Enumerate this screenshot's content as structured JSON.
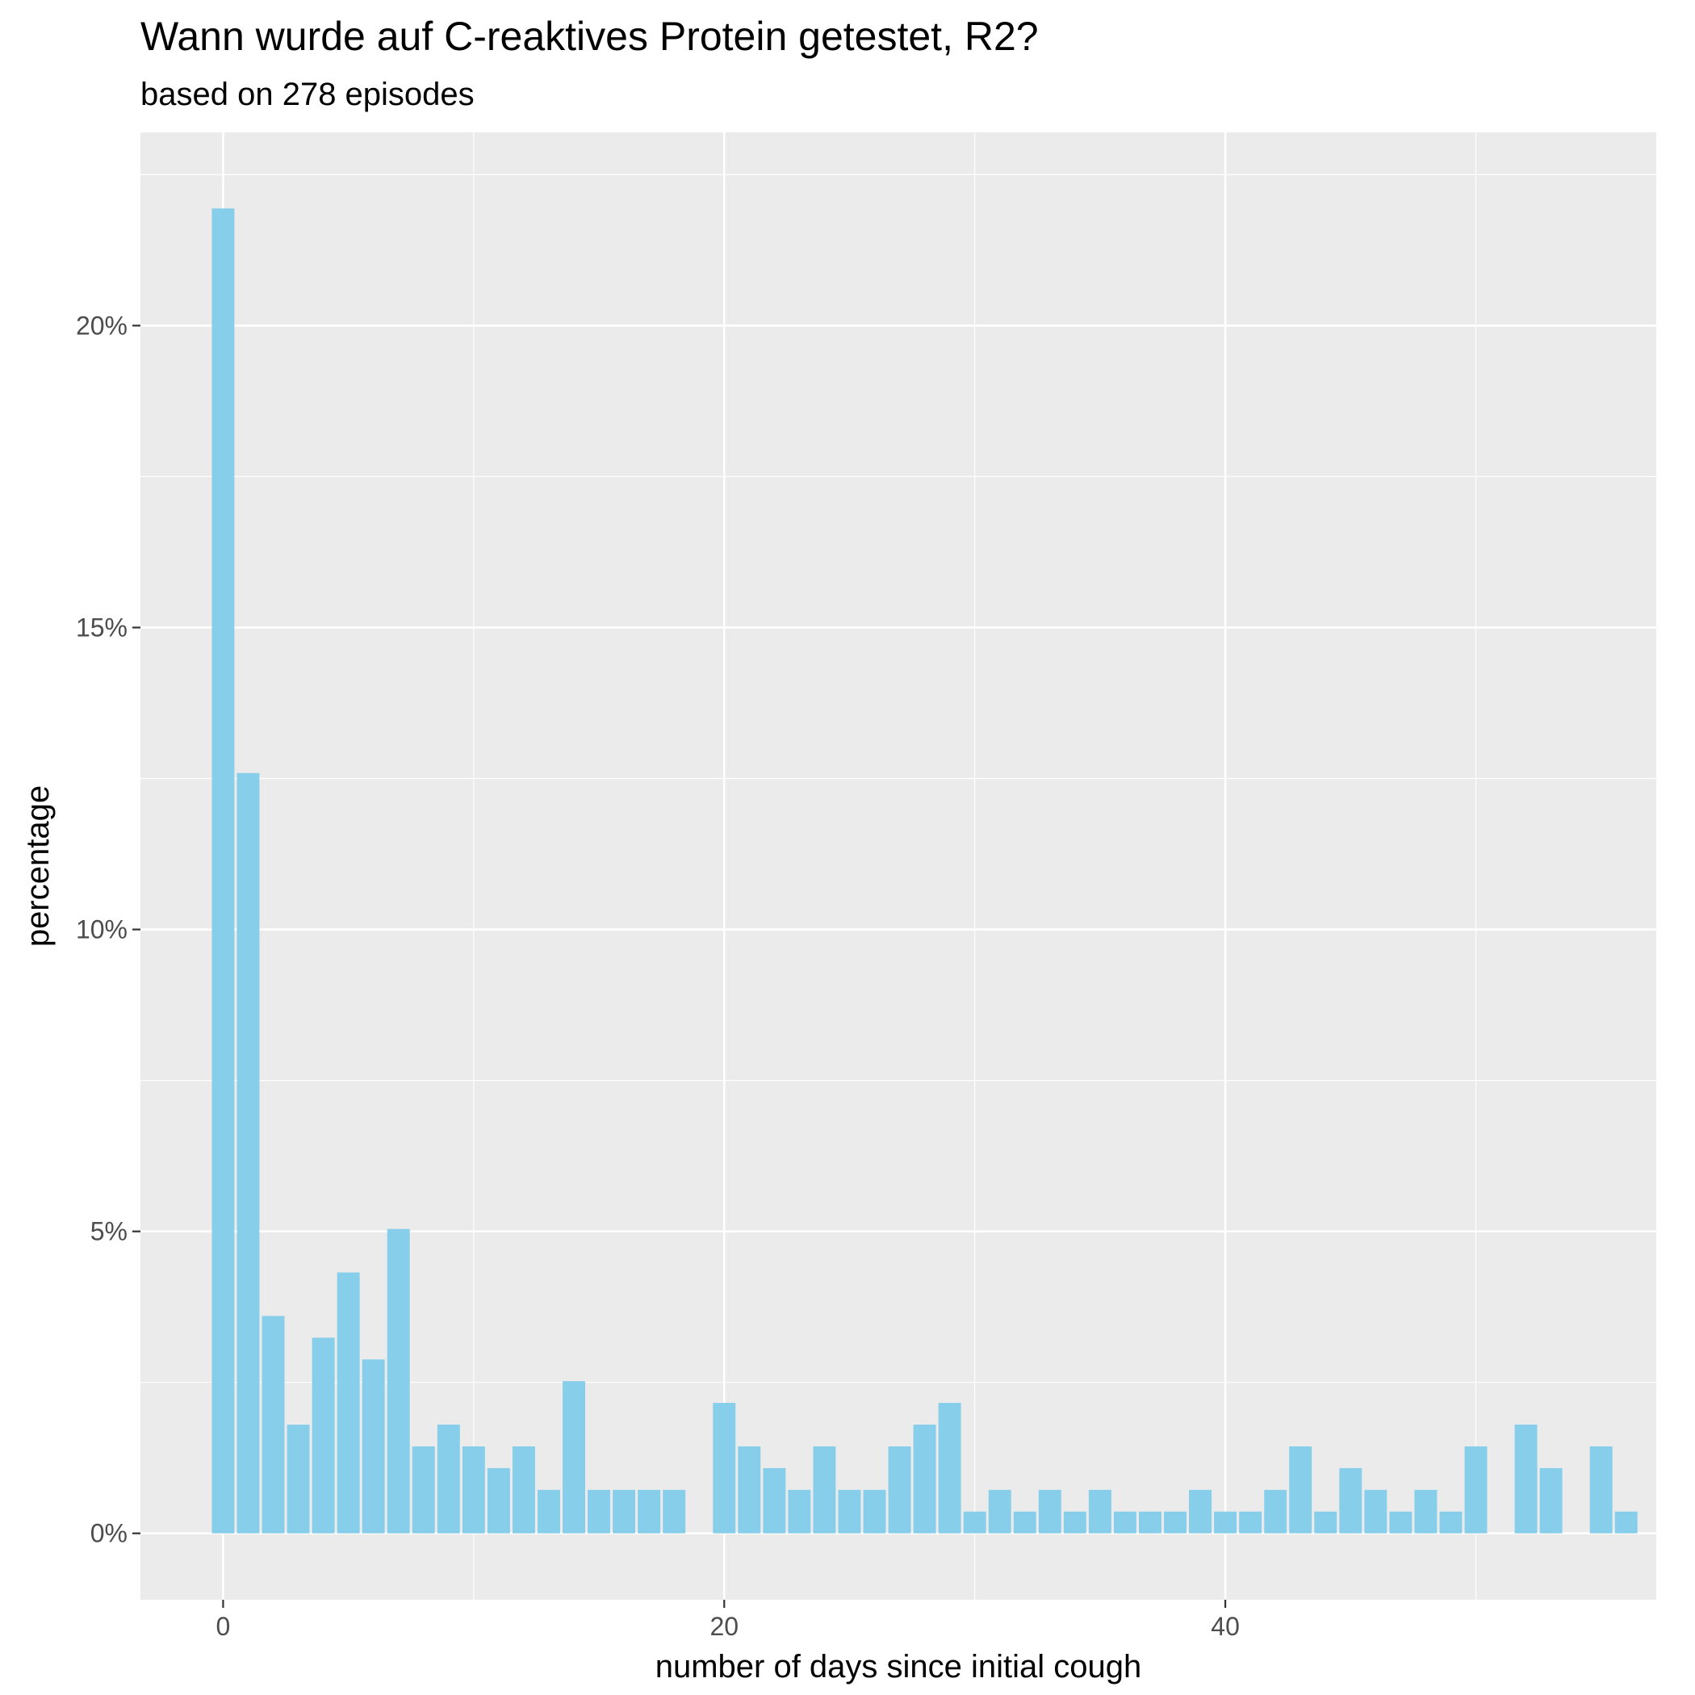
{
  "chart_data": {
    "type": "bar",
    "title": "Wann wurde auf C-reaktives Protein getestet, R2?",
    "subtitle": "based on 278 episodes",
    "xlabel": "number of days since initial cough",
    "ylabel": "percentage",
    "xlim": [
      -3.3,
      57.2
    ],
    "ylim": [
      -1.1,
      23.2
    ],
    "x_ticks": [
      0,
      20,
      40
    ],
    "y_ticks": [
      0,
      5,
      10,
      15,
      20
    ],
    "y_tick_labels": [
      "0%",
      "5%",
      "10%",
      "15%",
      "20%"
    ],
    "grid": true,
    "bar_color": "#87CEEB",
    "panel_color": "#EBEBEB",
    "grid_color": "#FFFFFF",
    "x": [
      0,
      1,
      2,
      3,
      4,
      5,
      6,
      7,
      8,
      9,
      10,
      11,
      12,
      13,
      14,
      15,
      16,
      17,
      18,
      20,
      21,
      22,
      23,
      24,
      25,
      26,
      27,
      28,
      29,
      30,
      31,
      32,
      33,
      34,
      35,
      36,
      37,
      38,
      39,
      40,
      41,
      42,
      43,
      44,
      45,
      46,
      47,
      48,
      49,
      50,
      52,
      53,
      55,
      56
    ],
    "values": [
      21.94,
      12.59,
      3.6,
      1.8,
      3.24,
      4.32,
      2.88,
      5.04,
      1.44,
      1.8,
      1.44,
      1.08,
      1.44,
      0.72,
      2.52,
      0.72,
      0.72,
      0.72,
      0.72,
      2.16,
      1.44,
      1.08,
      0.72,
      1.44,
      0.72,
      0.72,
      1.44,
      1.8,
      2.16,
      0.36,
      0.72,
      0.36,
      0.72,
      0.36,
      0.72,
      0.36,
      0.36,
      0.36,
      0.72,
      0.36,
      0.36,
      0.72,
      1.44,
      0.36,
      1.08,
      0.72,
      0.36,
      0.72,
      0.36,
      1.44,
      1.8,
      1.08,
      1.44,
      0.36
    ]
  }
}
